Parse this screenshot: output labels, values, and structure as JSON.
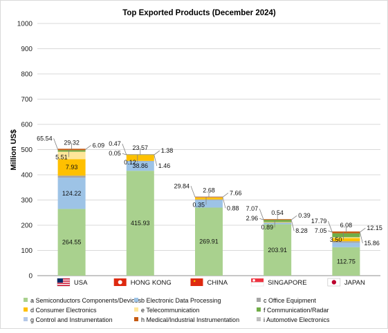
{
  "chart_data": {
    "type": "bar",
    "stacked": true,
    "title": "Top Exported Products (December 2024)",
    "xlabel": "",
    "ylabel": "Million US$",
    "ylim": [
      0,
      1000
    ],
    "yticks": [
      0,
      100,
      200,
      300,
      400,
      500,
      600,
      700,
      800,
      900,
      1000
    ],
    "grid": true,
    "legend_position": "bottom",
    "categories": [
      "USA",
      "HONG KONG",
      "CHINA",
      "SINGAPORE",
      "JAPAN"
    ],
    "flags": [
      "us-flag",
      "hong-kong-flag",
      "china-flag",
      "singapore-flag",
      "japan-flag"
    ],
    "series": [
      {
        "name": "a Semiconductors Components/Devices",
        "color": "#a9d18e",
        "values": [
          264.55,
          415.93,
          269.91,
          203.91,
          112.75
        ]
      },
      {
        "name": "b Electronic Data Processing",
        "color": "#9dc3e6",
        "values": [
          124.22,
          38.86,
          29.84,
          7.07,
          17.79
        ]
      },
      {
        "name": "c Office Equipment",
        "color": "#a5a5a5",
        "values": [
          7.93,
          0.47,
          2.68,
          0.54,
          6.08
        ]
      },
      {
        "name": "d Consumer Electronics",
        "color": "#ffc000",
        "values": [
          65.54,
          23.57,
          7.66,
          0.39,
          12.15
        ]
      },
      {
        "name": "e Telecommunication",
        "color": "#ffe699",
        "values": [
          29.32,
          1.38,
          0.35,
          0.89,
          3.5
        ]
      },
      {
        "name": "f Communication/Radar",
        "color": "#70ad47",
        "values": [
          6.09,
          0.12,
          0.0,
          8.28,
          15.86
        ]
      },
      {
        "name": "g Control and Instrumentation",
        "color": "#b4c7e7",
        "values": [
          0.0,
          0.0,
          0.0,
          0.0,
          0.0
        ]
      },
      {
        "name": "h Medical/Industrial Instrumentation",
        "color": "#c55a11",
        "values": [
          5.51,
          1.46,
          2.96,
          2.96,
          7.05
        ]
      },
      {
        "name": "i Automotive Electronics",
        "color": "#bfbfbf",
        "values": [
          0.0,
          0.05,
          0.88,
          0.0,
          0.0
        ]
      }
    ],
    "data_labels": [
      [
        "264.55",
        "124.22",
        "7.93",
        "65.54",
        "29.32",
        "6.09",
        "5.51"
      ],
      [
        "415.93",
        "38.86",
        "0.47",
        "23.57",
        "1.38",
        "0.12",
        "1.46",
        "0.05"
      ],
      [
        "269.91",
        "29.84",
        "2.68",
        "7.66",
        "0.35",
        "0.88"
      ],
      [
        "203.91",
        "7.07",
        "0.54",
        "0.39",
        "0.89",
        "8.28",
        "2.96"
      ],
      [
        "112.75",
        "17.79",
        "6.08",
        "12.15",
        "3.50",
        "15.86",
        "7.05"
      ]
    ]
  }
}
